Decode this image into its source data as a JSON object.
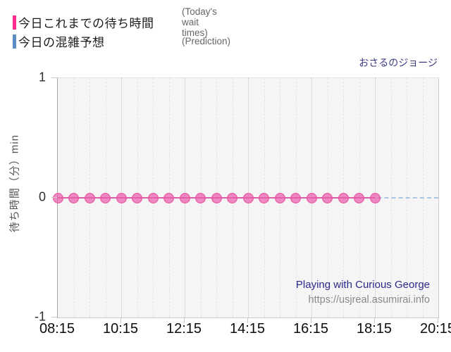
{
  "legend": {
    "items": [
      {
        "label_jp": "今日これまでの待ち時間",
        "label_en": "(Today's wait times)",
        "color": "#ff2d8e"
      },
      {
        "label_jp": "今日の混雑予想",
        "label_en": "(Prediction)",
        "color": "#5b8ec4"
      }
    ]
  },
  "attraction": {
    "name_jp": "おさるのジョージ",
    "name_en": "Playing with Curious George",
    "url": "https://usjreal.asumirai.info"
  },
  "chart_data": {
    "type": "line",
    "title": "おさるのジョージ",
    "ylabel": "待ち時間（分）min",
    "ylim": [
      -1,
      1
    ],
    "yticks": [
      1,
      0,
      -1
    ],
    "x_range": [
      "08:15",
      "20:15"
    ],
    "xticks": [
      "08:15",
      "10:15",
      "12:15",
      "14:15",
      "16:15",
      "18:15",
      "20:15"
    ],
    "minor_interval_min": 30,
    "major_interval_min": 120,
    "grid": true,
    "legend_position": "top-left",
    "plot_background": "#f5f5f6",
    "series": [
      {
        "name": "今日これまでの待ち時間 (Today's wait times)",
        "style": "dots",
        "color": "#ec60ac",
        "line_color": "#d85fa8",
        "x_start": "08:15",
        "interval_min": 30,
        "values": [
          0,
          0,
          0,
          0,
          0,
          0,
          0,
          0,
          0,
          0,
          0,
          0,
          0,
          0,
          0,
          0,
          0,
          0,
          0,
          0,
          0
        ]
      },
      {
        "name": "今日の混雑予想 (Prediction)",
        "style": "dashed-line",
        "color": "#a9c5e2",
        "x_start": "08:15",
        "x_end": "20:15",
        "value": 0
      }
    ]
  }
}
